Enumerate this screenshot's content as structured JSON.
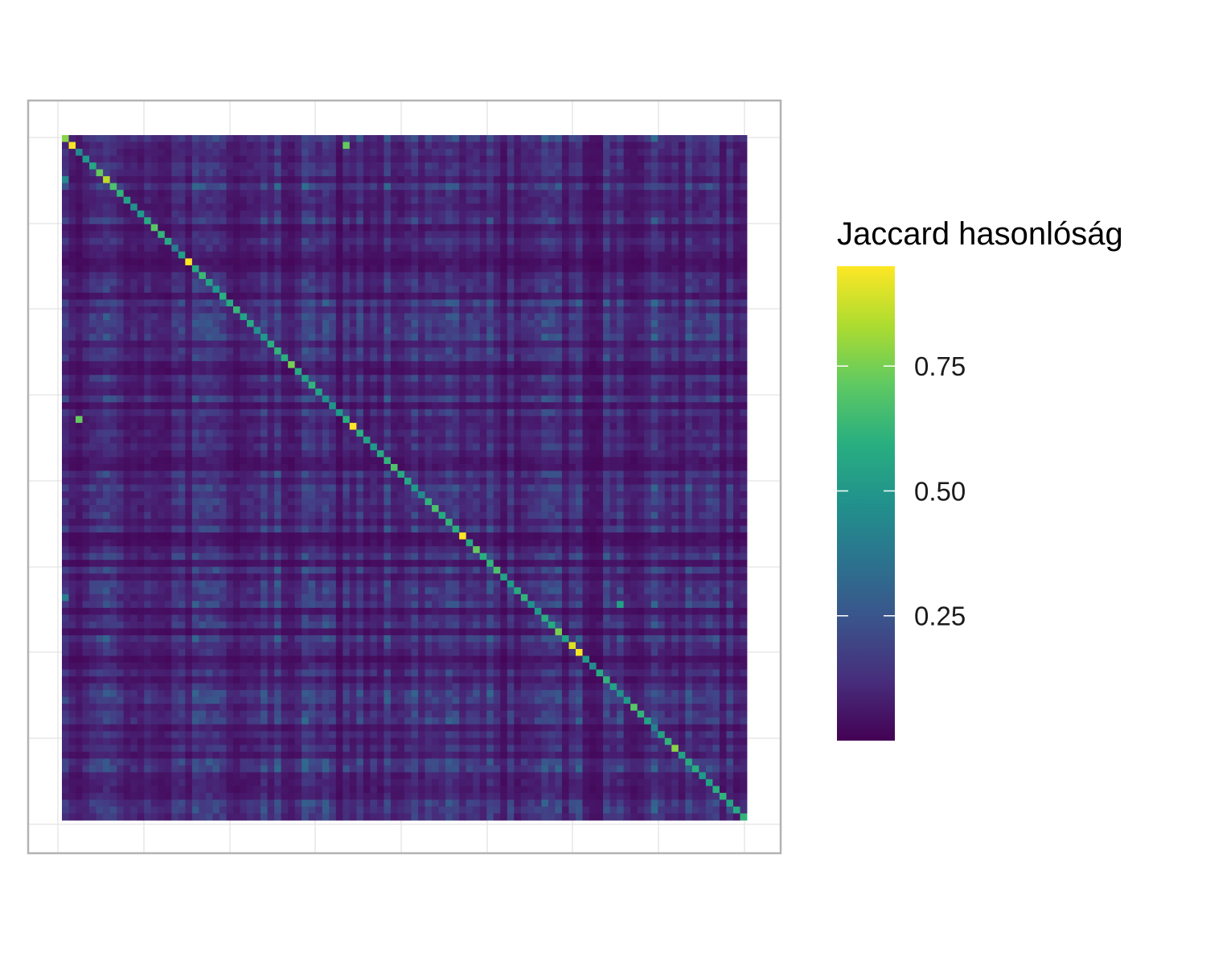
{
  "chart_data": {
    "type": "heatmap",
    "title": "",
    "xlabel": "",
    "ylabel": "",
    "n": 100,
    "color_scale": "viridis",
    "value_range": [
      0.0,
      0.95
    ],
    "legend": {
      "title": "Jaccard hasonlóság",
      "placement": "right",
      "ticks": [
        {
          "value": 0.75,
          "label": "0.75"
        },
        {
          "value": 0.5,
          "label": "0.50"
        },
        {
          "value": 0.25,
          "label": "0.25"
        }
      ]
    },
    "diagonal_values": [
      0.78,
      0.94,
      0.45,
      0.52,
      0.57,
      0.72,
      0.85,
      0.68,
      0.62,
      0.55,
      0.48,
      0.52,
      0.58,
      0.7,
      0.62,
      0.58,
      0.4,
      0.53,
      0.95,
      0.58,
      0.64,
      0.55,
      0.52,
      0.6,
      0.58,
      0.63,
      0.55,
      0.58,
      0.48,
      0.52,
      0.6,
      0.62,
      0.6,
      0.75,
      0.58,
      0.55,
      0.62,
      0.55,
      0.48,
      0.5,
      0.52,
      0.6,
      0.95,
      0.6,
      0.55,
      0.52,
      0.58,
      0.62,
      0.68,
      0.58,
      0.57,
      0.52,
      0.45,
      0.62,
      0.68,
      0.58,
      0.62,
      0.6,
      0.95,
      0.58,
      0.72,
      0.6,
      0.62,
      0.68,
      0.55,
      0.52,
      0.58,
      0.62,
      0.48,
      0.52,
      0.6,
      0.58,
      0.75,
      0.55,
      0.9,
      0.94,
      0.52,
      0.45,
      0.58,
      0.62,
      0.55,
      0.48,
      0.52,
      0.7,
      0.62,
      0.55,
      0.42,
      0.55,
      0.62,
      0.78,
      0.55,
      0.58,
      0.6,
      0.52,
      0.55,
      0.6,
      0.62,
      0.55,
      0.58,
      0.62
    ],
    "off_diagonal": {
      "typical_range": [
        0.0,
        0.35
      ],
      "highlights": [
        {
          "row": 1,
          "col": 41,
          "value": 0.72
        },
        {
          "row": 41,
          "col": 2,
          "value": 0.72
        },
        {
          "row": 6,
          "col": 0,
          "value": 0.45
        },
        {
          "row": 68,
          "col": 81,
          "value": 0.55
        },
        {
          "row": 67,
          "col": 0,
          "value": 0.4
        }
      ]
    },
    "row_profile_note_free": true,
    "grid": true
  }
}
